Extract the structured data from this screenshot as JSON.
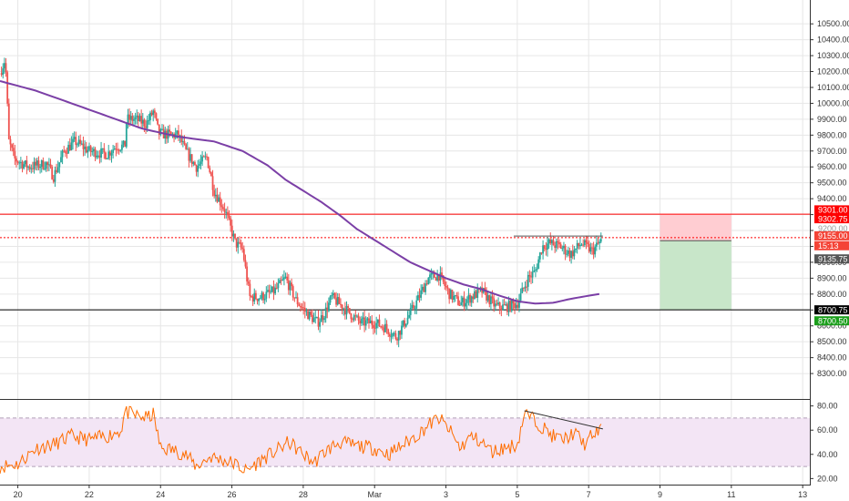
{
  "chart_data": [
    {
      "type": "candlestick",
      "title": "",
      "y_axis": {
        "range": [
          8140,
          10650
        ],
        "ticks": [
          "10500.00",
          "10400.00",
          "10300.00",
          "10200.00",
          "10100.00",
          "10000.00",
          "9900.00",
          "9800.00",
          "9700.00",
          "9600.00",
          "9500.00",
          "9400.00",
          "9300.00",
          "9200.00",
          "9100.00",
          "9000.00",
          "8900.00",
          "8800.00",
          "8700.00",
          "8600.00",
          "8500.00",
          "8400.00",
          "8300.00"
        ],
        "tick_values": [
          10500,
          10400,
          10300,
          10200,
          10100,
          10000,
          9900,
          9800,
          9700,
          9600,
          9500,
          9400,
          9300,
          9200,
          9100,
          9000,
          8900,
          8800,
          8700,
          8600,
          8500,
          8400,
          8300
        ]
      },
      "x_axis": {
        "ticks": [
          "20",
          "22",
          "24",
          "26",
          "28",
          "Mar",
          "3",
          "5",
          "7",
          "9",
          "11",
          "13"
        ],
        "tick_days": [
          0,
          2,
          4,
          6,
          8,
          10,
          12,
          14,
          16,
          18,
          20,
          22
        ],
        "range_days": [
          -0.5,
          22.2
        ]
      },
      "price_anchors": [
        [
          -0.5,
          10190
        ],
        [
          -0.35,
          10280
        ],
        [
          -0.25,
          9760
        ],
        [
          -0.1,
          9650
        ],
        [
          0.3,
          9600
        ],
        [
          0.8,
          9620
        ],
        [
          1.0,
          9540
        ],
        [
          1.3,
          9700
        ],
        [
          1.6,
          9760
        ],
        [
          2.0,
          9700
        ],
        [
          2.5,
          9680
        ],
        [
          2.75,
          9730
        ],
        [
          3.0,
          9730
        ],
        [
          3.05,
          9900
        ],
        [
          3.3,
          9900
        ],
        [
          3.6,
          9870
        ],
        [
          3.8,
          9950
        ],
        [
          3.95,
          9810
        ],
        [
          4.3,
          9800
        ],
        [
          4.5,
          9800
        ],
        [
          4.7,
          9700
        ],
        [
          5.0,
          9600
        ],
        [
          5.3,
          9660
        ],
        [
          5.5,
          9450
        ],
        [
          5.8,
          9330
        ],
        [
          6.1,
          9120
        ],
        [
          6.3,
          9080
        ],
        [
          6.5,
          8780
        ],
        [
          6.8,
          8780
        ],
        [
          7.2,
          8820
        ],
        [
          7.5,
          8900
        ],
        [
          7.8,
          8760
        ],
        [
          8.1,
          8680
        ],
        [
          8.4,
          8620
        ],
        [
          8.6,
          8680
        ],
        [
          8.8,
          8780
        ],
        [
          9.2,
          8700
        ],
        [
          9.6,
          8620
        ],
        [
          10.0,
          8620
        ],
        [
          10.3,
          8590
        ],
        [
          10.6,
          8530
        ],
        [
          10.9,
          8640
        ],
        [
          11.2,
          8760
        ],
        [
          11.5,
          8900
        ],
        [
          11.8,
          8920
        ],
        [
          12.1,
          8800
        ],
        [
          12.4,
          8740
        ],
        [
          12.7,
          8780
        ],
        [
          13.0,
          8820
        ],
        [
          13.4,
          8720
        ],
        [
          13.7,
          8720
        ],
        [
          14.0,
          8740
        ],
        [
          14.3,
          8900
        ],
        [
          14.5,
          8940
        ],
        [
          14.7,
          9100
        ],
        [
          14.9,
          9120
        ],
        [
          15.2,
          9100
        ],
        [
          15.5,
          9050
        ],
        [
          15.8,
          9120
        ],
        [
          16.1,
          9070
        ],
        [
          16.35,
          9135
        ]
      ],
      "moving_average": [
        [
          -0.5,
          10140
        ],
        [
          0.5,
          10080
        ],
        [
          1.5,
          10000
        ],
        [
          2.5,
          9920
        ],
        [
          3.5,
          9840
        ],
        [
          4.5,
          9790
        ],
        [
          5.5,
          9760
        ],
        [
          6.3,
          9700
        ],
        [
          7.0,
          9610
        ],
        [
          7.5,
          9520
        ],
        [
          8.0,
          9450
        ],
        [
          8.5,
          9380
        ],
        [
          9.0,
          9300
        ],
        [
          9.5,
          9210
        ],
        [
          10.0,
          9140
        ],
        [
          10.5,
          9070
        ],
        [
          11.0,
          9000
        ],
        [
          11.5,
          8950
        ],
        [
          12.0,
          8900
        ],
        [
          12.5,
          8860
        ],
        [
          13.0,
          8830
        ],
        [
          13.5,
          8790
        ],
        [
          14.0,
          8755
        ],
        [
          14.5,
          8740
        ],
        [
          15.0,
          8745
        ],
        [
          15.5,
          8770
        ],
        [
          16.0,
          8790
        ],
        [
          16.3,
          8800
        ]
      ],
      "horizontal_levels": [
        {
          "price": 9302.75,
          "color": "#ff0000",
          "style": "solid"
        },
        {
          "price": 9155.0,
          "color": "#ff0000",
          "style": "dotted"
        },
        {
          "price": 8700.75,
          "color": "#000000",
          "style": "solid"
        }
      ],
      "trend_line": {
        "points": [
          [
            13.9,
            9165
          ],
          [
            16.4,
            9165
          ]
        ],
        "color": "#555555"
      },
      "position_box": {
        "day_start": 18.0,
        "day_end": 20.0,
        "stop": 9302.75,
        "entry": 9135.75,
        "target": 8700.5,
        "stop_color": "#ffcdd2",
        "target_color": "#c8e6c9"
      },
      "price_labels": [
        {
          "text": "9301.00",
          "price": 9301.0,
          "bg": "#ff0000",
          "color": "#ffffff"
        },
        {
          "text": "9302.75",
          "price": 9302.75,
          "bg": "#ff0000",
          "color": "#ffffff"
        },
        {
          "text": "9200.00",
          "price": 9200.0,
          "bg": "#ffffff",
          "color": "#999999"
        },
        {
          "text": "9155.00",
          "price": 9155.0,
          "bg": "#f44336",
          "color": "#ffffff"
        },
        {
          "text": "15:13",
          "price": 9150.0,
          "bg": "#f44336",
          "color": "#ffffff"
        },
        {
          "text": "9135.75",
          "price": 9135.75,
          "bg": "#555555",
          "color": "#ffffff"
        },
        {
          "text": "8700.75",
          "price": 8700.75,
          "bg": "#000000",
          "color": "#ffffff"
        },
        {
          "text": "8700.50",
          "price": 8700.5,
          "bg": "#1b9e1b",
          "color": "#ffffff"
        }
      ]
    },
    {
      "type": "line",
      "title": "",
      "y_axis": {
        "range": [
          15,
          85
        ],
        "ticks": [
          "80.00",
          "60.00",
          "40.00",
          "20.00"
        ],
        "tick_values": [
          80,
          60,
          40,
          20
        ]
      },
      "band": {
        "upper": 70,
        "lower": 30,
        "fill": "#f3e5f5"
      },
      "rsi_anchors": [
        [
          -0.5,
          30
        ],
        [
          0,
          32
        ],
        [
          0.5,
          45
        ],
        [
          1.0,
          48
        ],
        [
          1.5,
          55
        ],
        [
          2.0,
          52
        ],
        [
          2.5,
          55
        ],
        [
          2.9,
          60
        ],
        [
          3.0,
          75
        ],
        [
          3.3,
          72
        ],
        [
          3.6,
          70
        ],
        [
          3.8,
          73
        ],
        [
          4.0,
          45
        ],
        [
          4.3,
          44
        ],
        [
          4.7,
          40
        ],
        [
          5.0,
          30
        ],
        [
          5.4,
          38
        ],
        [
          5.8,
          35
        ],
        [
          6.1,
          32
        ],
        [
          6.4,
          26
        ],
        [
          6.8,
          35
        ],
        [
          7.2,
          42
        ],
        [
          7.6,
          50
        ],
        [
          8.0,
          40
        ],
        [
          8.3,
          33
        ],
        [
          8.6,
          42
        ],
        [
          9.0,
          50
        ],
        [
          9.5,
          47
        ],
        [
          10.0,
          45
        ],
        [
          10.4,
          40
        ],
        [
          10.8,
          48
        ],
        [
          11.2,
          56
        ],
        [
          11.5,
          64
        ],
        [
          11.8,
          70
        ],
        [
          12.1,
          60
        ],
        [
          12.4,
          45
        ],
        [
          12.7,
          55
        ],
        [
          13.0,
          50
        ],
        [
          13.3,
          42
        ],
        [
          13.6,
          45
        ],
        [
          14.0,
          48
        ],
        [
          14.2,
          74
        ],
        [
          14.5,
          68
        ],
        [
          14.8,
          60
        ],
        [
          15.0,
          55
        ],
        [
          15.3,
          52
        ],
        [
          15.6,
          58
        ],
        [
          15.9,
          48
        ],
        [
          16.1,
          56
        ],
        [
          16.35,
          60
        ]
      ],
      "rsi_trend_line": {
        "points": [
          [
            14.2,
            76
          ],
          [
            16.4,
            61
          ]
        ],
        "color": "#333333"
      },
      "line_color": "#ff6d00"
    }
  ],
  "colors": {
    "up": "#26a69a",
    "down": "#ef5350",
    "ma": "#7b3fa6",
    "grid": "#e6e6e6",
    "axis_text": "#333333"
  }
}
